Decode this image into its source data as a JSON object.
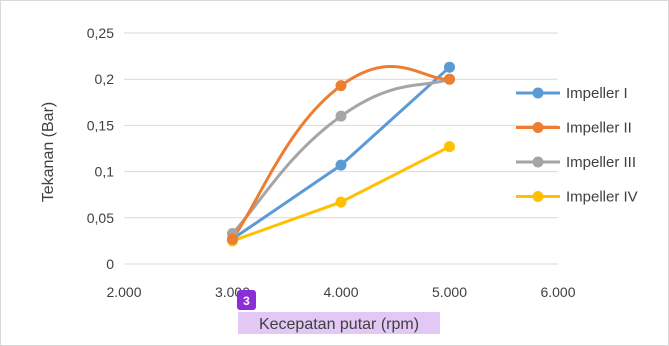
{
  "chart_data": {
    "type": "line",
    "xlabel": "Kecepatan putar (rpm)",
    "ylabel": "Tekanan (Bar)",
    "xlim": [
      2000,
      6000
    ],
    "ylim": [
      0,
      0.25
    ],
    "x_ticks": [
      2000,
      3000,
      4000,
      5000,
      6000
    ],
    "x_tick_labels": [
      "2.000",
      "3.000",
      "4.000",
      "5.000",
      "6.000"
    ],
    "y_ticks": [
      0,
      0.05,
      0.1,
      0.15,
      0.2,
      0.25
    ],
    "y_tick_labels": [
      "0",
      "0,05",
      "0,1",
      "0,15",
      "0,2",
      "0,25"
    ],
    "grid": "horizontal",
    "legend_position": "right",
    "annotation_badge": "3",
    "series": [
      {
        "name": "Impeller I",
        "color": "#5b9bd5",
        "smooth": false,
        "x": [
          3000,
          4000,
          5000
        ],
        "y": [
          0.027,
          0.107,
          0.213
        ]
      },
      {
        "name": "Impeller II",
        "color": "#ed7d31",
        "smooth": true,
        "x": [
          3000,
          4000,
          5000
        ],
        "y": [
          0.027,
          0.193,
          0.2
        ]
      },
      {
        "name": "Impeller III",
        "color": "#a5a5a5",
        "smooth": true,
        "x": [
          3000,
          4000,
          5000
        ],
        "y": [
          0.033,
          0.16,
          0.2
        ]
      },
      {
        "name": "Impeller IV",
        "color": "#ffc000",
        "smooth": false,
        "x": [
          3000,
          4000,
          5000
        ],
        "y": [
          0.025,
          0.067,
          0.127
        ]
      }
    ]
  }
}
